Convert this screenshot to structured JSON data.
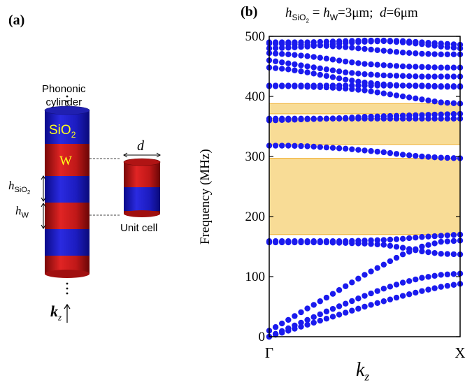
{
  "panel_a": {
    "label": "(a)",
    "cylinder_caption": "Phononic cylinder",
    "cylinder_caption_line1": "Phononic",
    "cylinder_caption_line2": "cylinder",
    "material_top_base": "SiO",
    "material_top_sub": "2",
    "material_second": "W",
    "dim_d": "d",
    "dim_h_sio2_base": "h",
    "dim_h_sio2_sub": "SiO",
    "dim_h_sio2_sub2": "2",
    "dim_h_w_base": "h",
    "dim_h_w_sub": "W",
    "unit_cell_label": "Unit cell",
    "kz_base": "k",
    "kz_sub": "z",
    "colors": {
      "sio2": "#1c1cc8",
      "w": "#c81818"
    }
  },
  "panel_b": {
    "label": "(b)",
    "header": {
      "h": "h",
      "sio_sub": "SiO",
      "sio_sub2": "2",
      "eq": " = ",
      "h2": "h",
      "w_sub": "W",
      "val": "=3μm;  ",
      "d": "d",
      "dval": "=6μm"
    },
    "ylabel": "Frequency (MHz)",
    "xlabel_base": "k",
    "xlabel_sub": "z"
  },
  "chart_data": {
    "type": "scatter",
    "title": "",
    "xlabel": "kz",
    "ylabel": "Frequency (MHz)",
    "x_ticks": [
      "Γ",
      "X"
    ],
    "y_ticks": [
      0,
      100,
      200,
      300,
      400,
      500
    ],
    "ylim": [
      0,
      500
    ],
    "xlim": [
      0,
      1
    ],
    "grid": false,
    "marker_color": "#1a1aee",
    "bandgap_color": "#f8dc96",
    "bandgaps": [
      {
        "ymin": 170,
        "ymax": 297
      },
      {
        "ymin": 320,
        "ymax": 363
      },
      {
        "ymin": 371,
        "ymax": 388
      }
    ],
    "series": [
      {
        "x": [
          0,
          0.1,
          0.2,
          0.3,
          0.4,
          0.5,
          0.6,
          0.7,
          0.8,
          0.9,
          1.0
        ],
        "y": [
          0,
          10,
          20,
          30,
          40,
          50,
          59,
          68,
          76,
          83,
          88
        ]
      },
      {
        "x": [
          0,
          0.1,
          0.2,
          0.3,
          0.4,
          0.5,
          0.6,
          0.7,
          0.8,
          0.9,
          1.0
        ],
        "y": [
          0,
          14,
          28,
          42,
          55,
          68,
          80,
          90,
          98,
          103,
          105
        ]
      },
      {
        "x": [
          0,
          0.1,
          0.2,
          0.3,
          0.4,
          0.5,
          0.6,
          0.7,
          0.8,
          0.9,
          1.0
        ],
        "y": [
          10,
          28,
          47,
          65,
          84,
          103,
          120,
          137,
          150,
          158,
          160
        ]
      },
      {
        "x": [
          0,
          0.1,
          0.2,
          0.3,
          0.4,
          0.5,
          0.6,
          0.7,
          0.8,
          0.9,
          1.0
        ],
        "y": [
          157,
          157,
          157,
          157,
          156,
          155,
          153,
          148,
          142,
          138,
          137
        ]
      },
      {
        "x": [
          0,
          0.1,
          0.2,
          0.3,
          0.4,
          0.5,
          0.6,
          0.7,
          0.8,
          0.9,
          1.0
        ],
        "y": [
          159,
          159,
          159,
          159,
          159,
          160,
          161,
          163,
          166,
          168,
          170
        ]
      },
      {
        "x": [
          0,
          0.1,
          0.2,
          0.3,
          0.4,
          0.5,
          0.6,
          0.7,
          0.8,
          0.9,
          1.0
        ],
        "y": [
          318,
          318,
          317,
          315,
          313,
          310,
          307,
          303,
          300,
          298,
          297
        ]
      },
      {
        "x": [
          0,
          0.1,
          0.2,
          0.3,
          0.4,
          0.5,
          0.6,
          0.7,
          0.8,
          0.9,
          1.0
        ],
        "y": [
          363,
          363,
          363,
          363,
          363,
          363,
          363,
          363,
          363,
          363,
          363
        ]
      },
      {
        "x": [
          0,
          0.1,
          0.2,
          0.3,
          0.4,
          0.5,
          0.6,
          0.7,
          0.8,
          0.9,
          1.0
        ],
        "y": [
          360,
          361,
          362,
          363,
          364,
          366,
          367,
          368,
          369,
          370,
          371
        ]
      },
      {
        "x": [
          0,
          0.1,
          0.2,
          0.3,
          0.4,
          0.5,
          0.6,
          0.7,
          0.8,
          0.9,
          1.0
        ],
        "y": [
          417,
          417,
          416,
          415,
          413,
          410,
          405,
          400,
          395,
          390,
          388
        ]
      },
      {
        "x": [
          0,
          0.1,
          0.2,
          0.3,
          0.4,
          0.5,
          0.6,
          0.7,
          0.8,
          0.9,
          1.0
        ],
        "y": [
          418,
          418,
          418,
          418,
          418,
          418,
          418,
          418,
          418,
          417,
          417
        ]
      },
      {
        "x": [
          0,
          0.1,
          0.2,
          0.3,
          0.4,
          0.5,
          0.6,
          0.7,
          0.8,
          0.9,
          1.0
        ],
        "y": [
          448,
          445,
          440,
          434,
          428,
          423,
          420,
          418,
          417,
          416,
          416
        ]
      },
      {
        "x": [
          0,
          0.1,
          0.2,
          0.3,
          0.4,
          0.5,
          0.6,
          0.7,
          0.8,
          0.9,
          1.0
        ],
        "y": [
          460,
          455,
          450,
          445,
          440,
          437,
          435,
          434,
          433,
          433,
          433
        ]
      },
      {
        "x": [
          0,
          0.1,
          0.2,
          0.3,
          0.4,
          0.5,
          0.6,
          0.7,
          0.8,
          0.9,
          1.0
        ],
        "y": [
          472,
          470,
          467,
          463,
          458,
          454,
          452,
          450,
          449,
          448,
          448
        ]
      },
      {
        "x": [
          0,
          0.1,
          0.2,
          0.3,
          0.4,
          0.5,
          0.6,
          0.7,
          0.8,
          0.9,
          1.0
        ],
        "y": [
          488,
          487,
          486,
          484,
          482,
          479,
          476,
          473,
          471,
          470,
          470
        ]
      },
      {
        "x": [
          0,
          0.1,
          0.2,
          0.3,
          0.4,
          0.5,
          0.6,
          0.7,
          0.8,
          0.9,
          1.0
        ],
        "y": [
          490,
          490,
          490,
          491,
          492,
          493,
          493,
          492,
          490,
          488,
          486
        ]
      },
      {
        "x": [
          0,
          0.1,
          0.2,
          0.3,
          0.4,
          0.5,
          0.6,
          0.7,
          0.8,
          0.9,
          1.0
        ],
        "y": [
          480,
          481,
          483,
          486,
          489,
          491,
          492,
          490,
          487,
          483,
          480
        ]
      }
    ]
  }
}
